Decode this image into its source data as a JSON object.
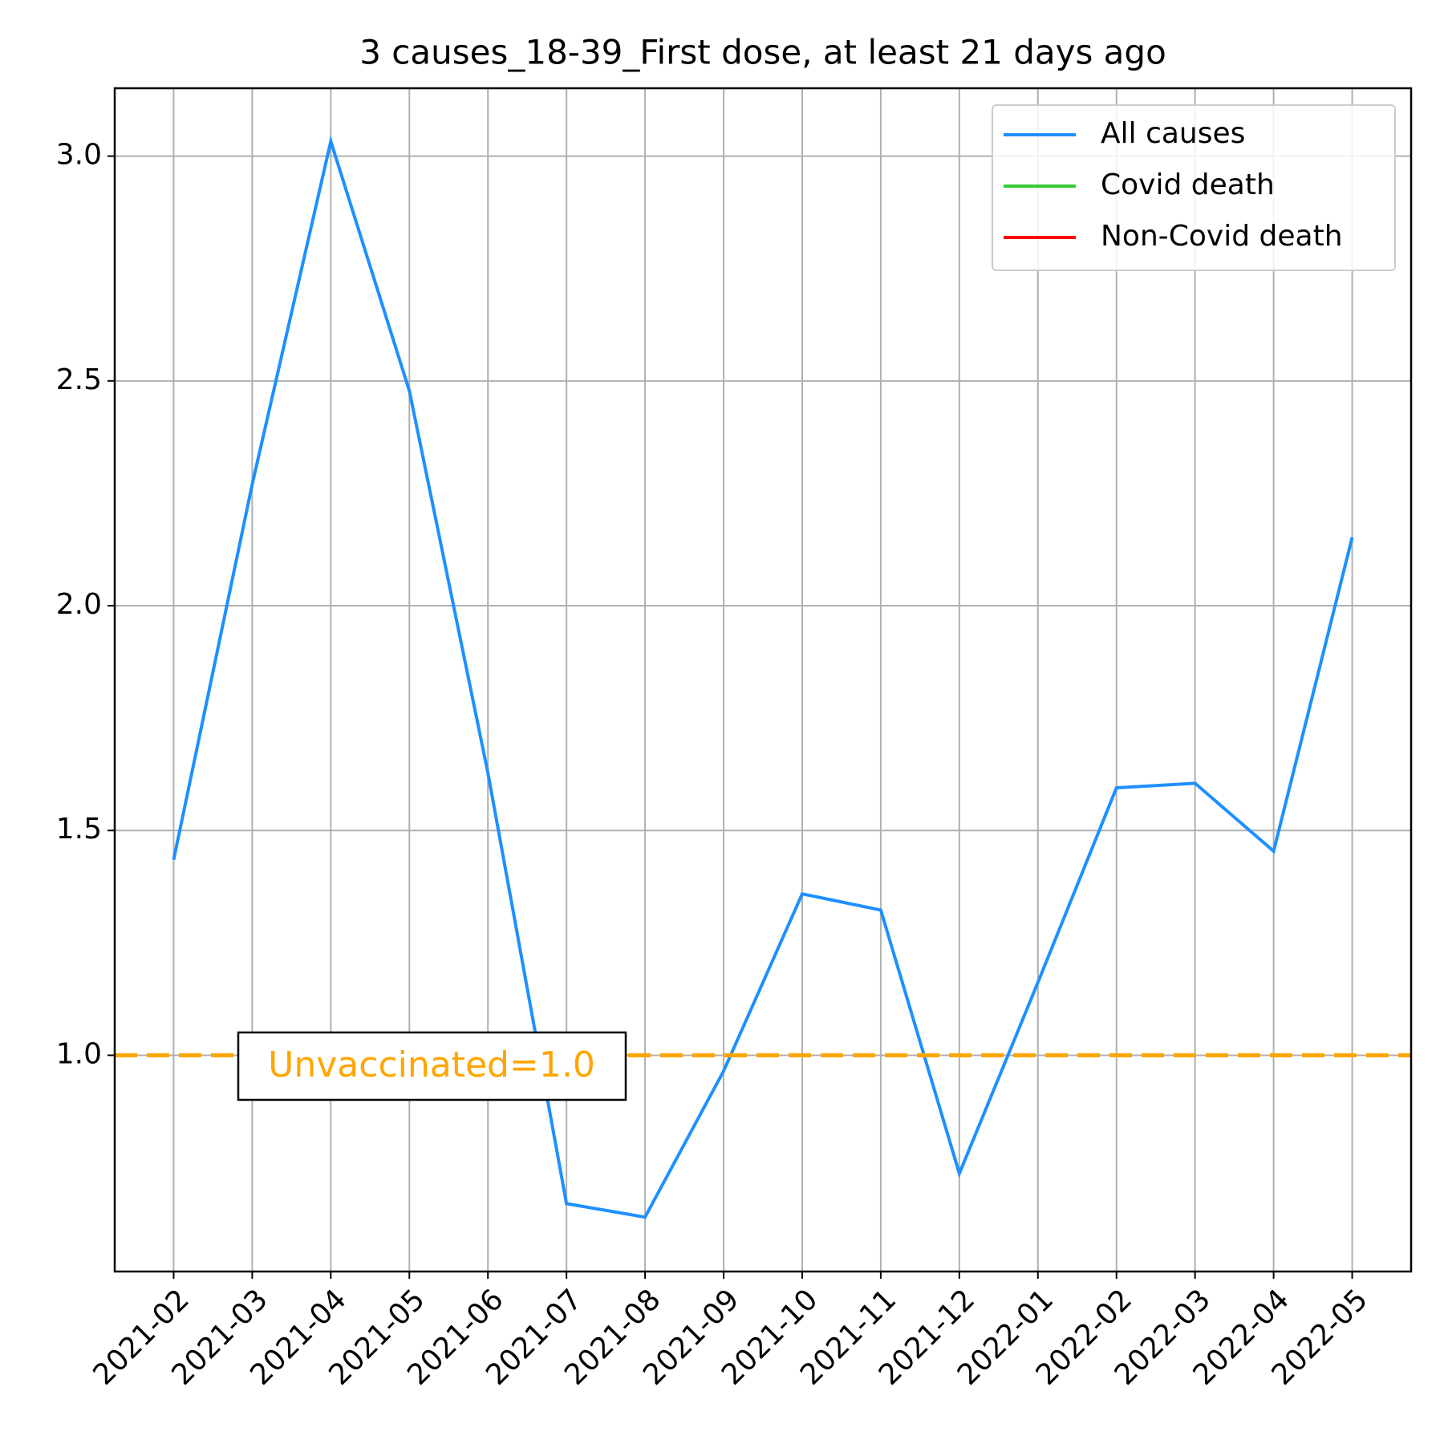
{
  "chart_data": {
    "type": "line",
    "title": "3 causes_18-39_First dose, at least 21 days ago",
    "categories": [
      "2021-02",
      "2021-03",
      "2021-04",
      "2021-05",
      "2021-06",
      "2021-07",
      "2021-08",
      "2021-09",
      "2021-10",
      "2021-11",
      "2021-12",
      "2022-01",
      "2022-02",
      "2022-03",
      "2022-04",
      "2022-05"
    ],
    "series": [
      {
        "name": "All causes",
        "color": "#1e90ff",
        "values": [
          1.435,
          2.27,
          3.033,
          2.478,
          1.628,
          0.67,
          0.64,
          0.965,
          1.359,
          1.323,
          0.737,
          1.162,
          1.595,
          1.605,
          1.454,
          2.152
        ]
      },
      {
        "name": "Covid death",
        "color": "#32cd32",
        "values": [
          null,
          null,
          null,
          null,
          null,
          null,
          null,
          null,
          null,
          null,
          null,
          null,
          null,
          null,
          null,
          null
        ]
      },
      {
        "name": "Non-Covid death",
        "color": "#ff0000",
        "values": [
          null,
          null,
          null,
          null,
          null,
          null,
          null,
          null,
          null,
          null,
          null,
          null,
          null,
          null,
          null,
          null
        ]
      }
    ],
    "ylim": [
      0.519,
      3.151
    ],
    "yticks": [
      {
        "value": 1.0,
        "label": "1.0"
      },
      {
        "value": 1.5,
        "label": "1.5"
      },
      {
        "value": 2.0,
        "label": "2.0"
      },
      {
        "value": 2.5,
        "label": "2.5"
      },
      {
        "value": 3.0,
        "label": "3.0"
      }
    ],
    "grid": true,
    "legend": "upper right",
    "reference_line": {
      "value": 1.0,
      "color": "orange",
      "label": "Unvaccinated=1.0"
    }
  }
}
